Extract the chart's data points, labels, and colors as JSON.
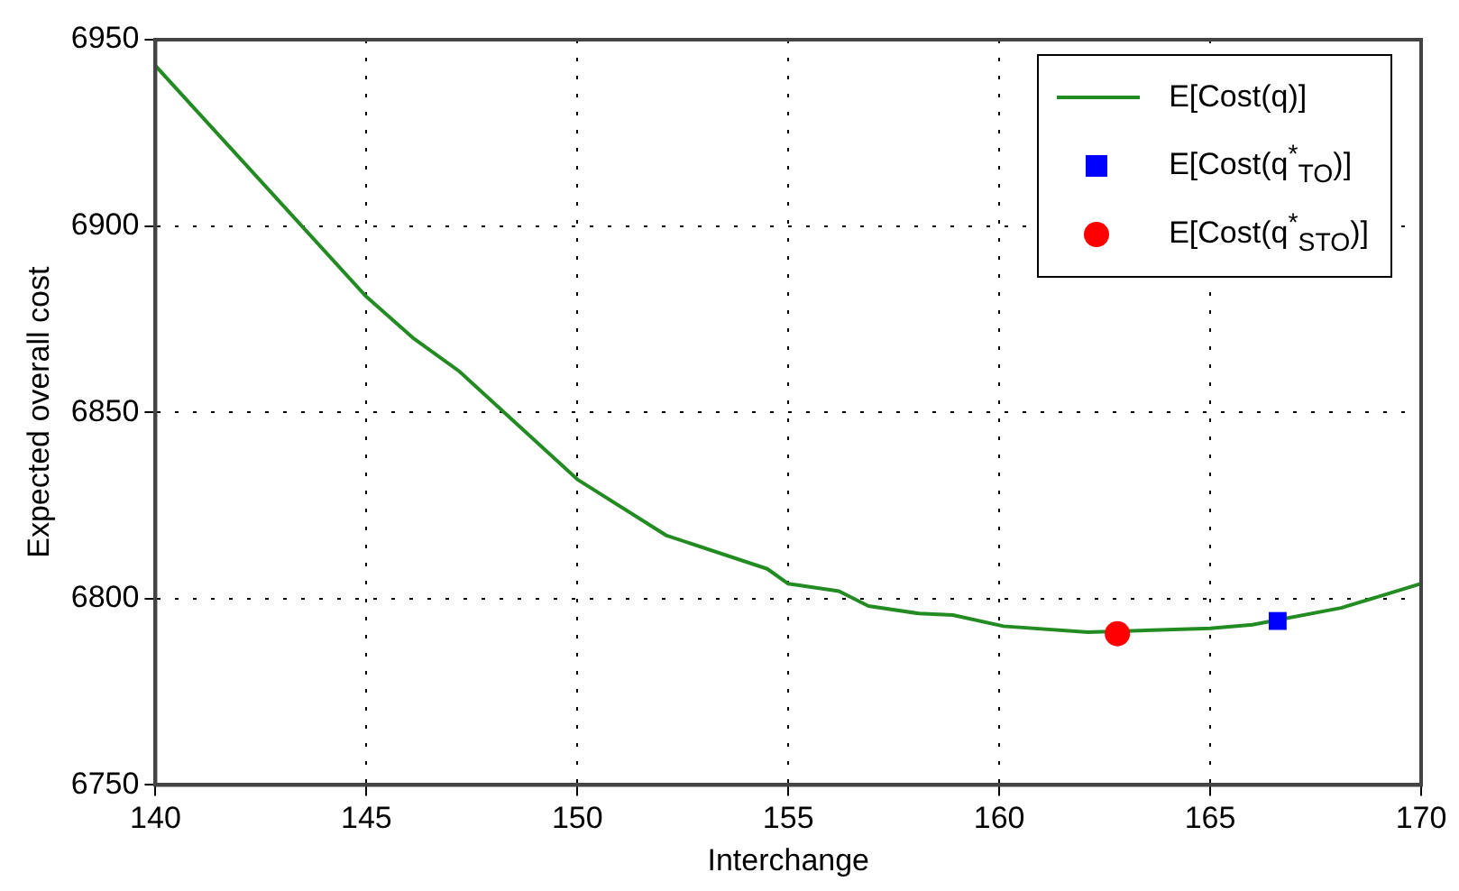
{
  "chart_data": {
    "type": "line",
    "xlabel": "Interchange",
    "ylabel": "Expected overall cost",
    "xlim": [
      140,
      170
    ],
    "xticks": [
      140,
      145,
      150,
      155,
      160,
      165,
      170
    ],
    "ylim": [
      6750,
      6950
    ],
    "yticks": [
      6750,
      6800,
      6850,
      6900,
      6950
    ],
    "grid": true,
    "legend": "top right",
    "line_style": "solid",
    "series": [
      {
        "name": "E[Cost(q)]",
        "color": "#228b22",
        "marker": "none",
        "x": [
          140,
          145,
          146.1,
          147.2,
          150,
          152.1,
          154.5,
          155,
          156.2,
          156.9,
          158.1,
          158.9,
          160.1,
          162.1,
          165,
          166,
          168.1,
          170
        ],
        "values": [
          6943,
          6881,
          6870,
          6861,
          6832,
          6817,
          6808,
          6804,
          6802,
          6798,
          6796,
          6795.6,
          6792.6,
          6791,
          6792,
          6793,
          6797.5,
          6804
        ]
      },
      {
        "name": "E[Cost(q$^{*}$$_{TO}$)]",
        "type": "scatter",
        "color": "#0000ff",
        "marker": "square",
        "x": [
          166.6
        ],
        "values": [
          6794
        ]
      },
      {
        "name": "E[Cost(q$^{*}$$_{STO}$)]",
        "type": "scatter",
        "color": "#ff0000",
        "marker": "circle",
        "x": [
          162.8
        ],
        "values": [
          6790.6
        ]
      }
    ]
  }
}
